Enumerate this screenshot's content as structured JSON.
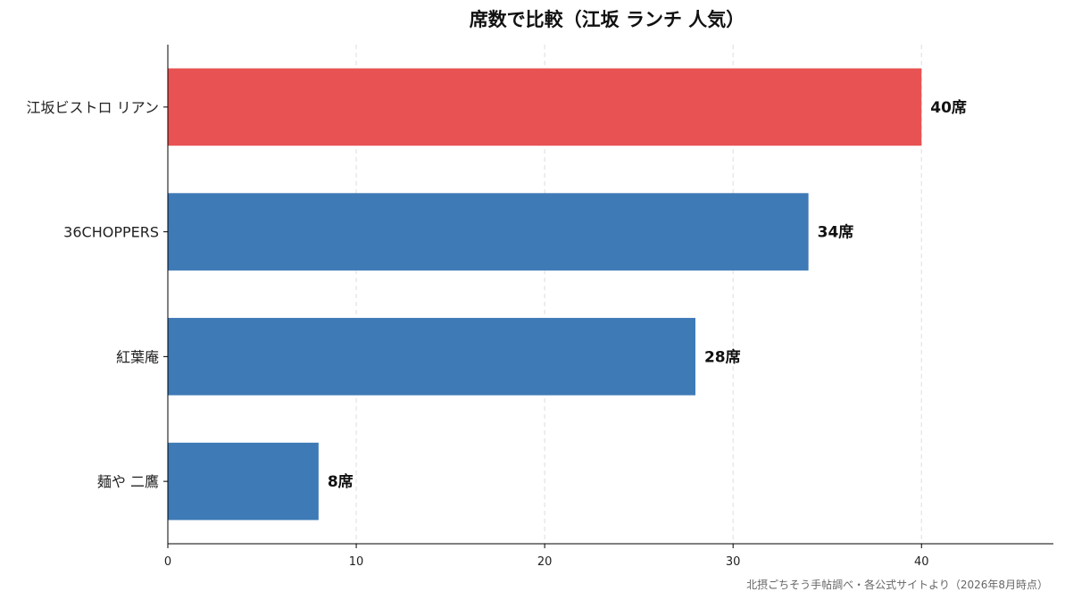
{
  "chart_data": {
    "type": "bar",
    "orientation": "horizontal",
    "title": "席数で比較（江坂 ランチ 人気）",
    "categories": [
      "江坂ビストロ リアン",
      "36CHOPPERS",
      "紅葉庵",
      "麺や 二鷹"
    ],
    "values": [
      40,
      34,
      28,
      8
    ],
    "value_labels": [
      "40席",
      "34席",
      "28席",
      "8席"
    ],
    "highlight_index": 0,
    "xlim": [
      0,
      47
    ],
    "xticks": [
      0,
      10,
      20,
      30,
      40
    ],
    "xlabel": "",
    "ylabel": "",
    "grid": "x-dashed",
    "colors": {
      "highlight": "#e85252",
      "default": "#3e7ab6"
    },
    "source": "北摂ごちそう手帖調べ・各公式サイトより（2026年8月時点）"
  }
}
